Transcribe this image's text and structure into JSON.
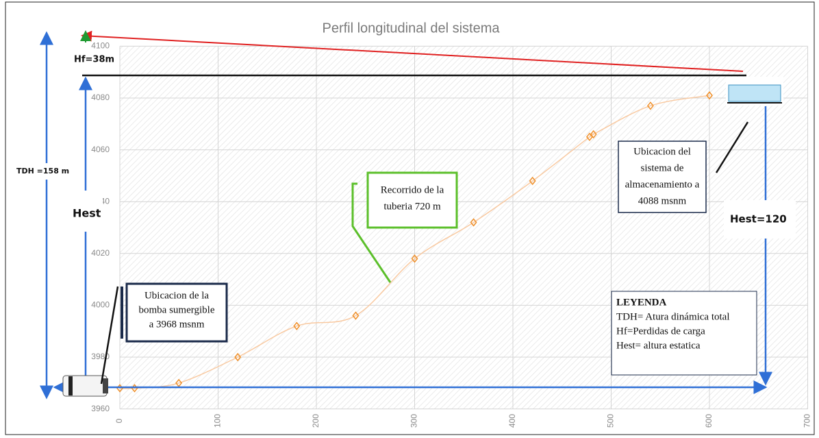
{
  "chart_data": {
    "type": "line",
    "title": "Perfil longitudinal del sistema",
    "x": [
      0,
      15,
      60,
      120,
      180,
      240,
      300,
      360,
      420,
      478,
      482,
      540,
      600
    ],
    "values": [
      3968,
      3968,
      3970,
      3980,
      3992,
      3996,
      4018,
      4032,
      4048,
      4065,
      4066,
      4077,
      4081
    ],
    "color": "#f0902a",
    "xlim": [
      0,
      700
    ],
    "ylim": [
      3960,
      4100
    ],
    "xticks": [
      0,
      100,
      200,
      300,
      400,
      500,
      600,
      700
    ],
    "yticks": [
      3960,
      3980,
      4000,
      4020,
      4040,
      4060,
      4080,
      4100
    ],
    "grid": true,
    "annotations": {
      "hf": "Hf=38m",
      "tdh": "TDH =158 m",
      "hest": "Hest",
      "hest_right": "Hest=120",
      "pipe": [
        "Recorrido de la",
        "tuberia 720 m"
      ],
      "storage": [
        "Ubicacion del",
        "sistema de",
        "almacenamiento a",
        "4088 msnm"
      ],
      "pump": [
        "Ubicacion de la",
        "bomba sumergible",
        "a 3968 msnm"
      ],
      "legend": [
        "LEYENDA",
        "TDH= Atura dinámica total",
        "Hf=Perdidas de carga",
        "Hest= altura estatica"
      ]
    }
  }
}
